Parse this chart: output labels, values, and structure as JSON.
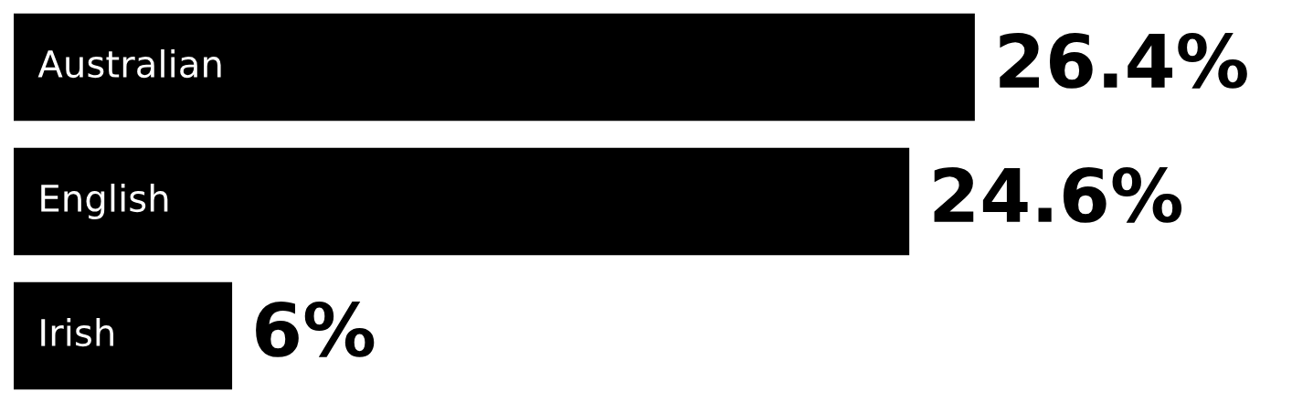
{
  "chart_data": {
    "type": "bar",
    "orientation": "horizontal",
    "tick_labels": "y",
    "categories": [
      "Australian",
      "English",
      "Irish"
    ],
    "values": [
      26.4,
      24.6,
      6
    ],
    "value_labels": [
      "26.4%",
      "24.6%",
      "6%"
    ],
    "color": "#000000"
  }
}
